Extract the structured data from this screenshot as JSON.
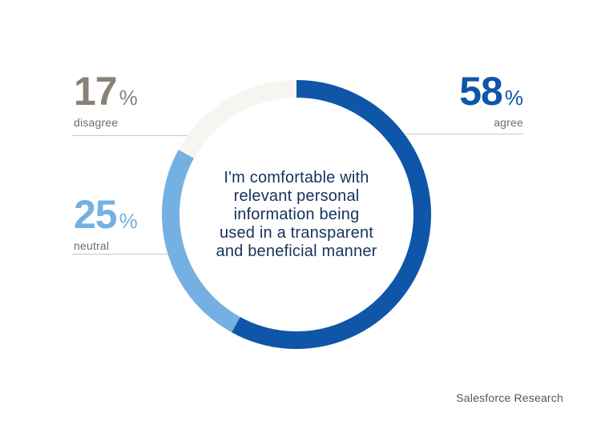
{
  "chart_data": {
    "type": "pie",
    "subtype": "donut",
    "title": "I'm comfortable with relevant personal information being used in a transparent and beneficial manner",
    "start_angle_deg": 0,
    "direction": "clockwise",
    "unit": "%",
    "segments": [
      {
        "name": "agree",
        "label": "agree",
        "value": 58,
        "color": "#0F56A9"
      },
      {
        "name": "neutral",
        "label": "neutral",
        "value": 25,
        "color": "#74B1E2"
      },
      {
        "name": "disagree",
        "label": "disagree",
        "value": 17,
        "color": "#F7F5F2"
      }
    ],
    "legend_position": "callouts-left-and-right"
  },
  "callouts": {
    "disagree": {
      "value": "17",
      "sign": "%",
      "label": "disagree"
    },
    "agree": {
      "value": "58",
      "sign": "%",
      "label": "agree"
    },
    "neutral": {
      "value": "25",
      "sign": "%",
      "label": "neutral"
    }
  },
  "center_text": "I'm comfortable with\nrelevant personal\ninformation being\nused in a transparent\nand beneficial manner",
  "footer": {
    "source": "Salesforce Research"
  },
  "palette": {
    "agree_blue": "#0F56A9",
    "neutral_blue": "#74B1E2",
    "disagree_offwhite": "#F7F5F2",
    "disagree_number_taupe": "#8A8177",
    "category_label_gray": "#6E6D72",
    "connector_line_gray": "#C3C6CA",
    "center_text_navy": "#16325C",
    "footer_gray": "#55565A",
    "background": "#FFFFFF"
  }
}
